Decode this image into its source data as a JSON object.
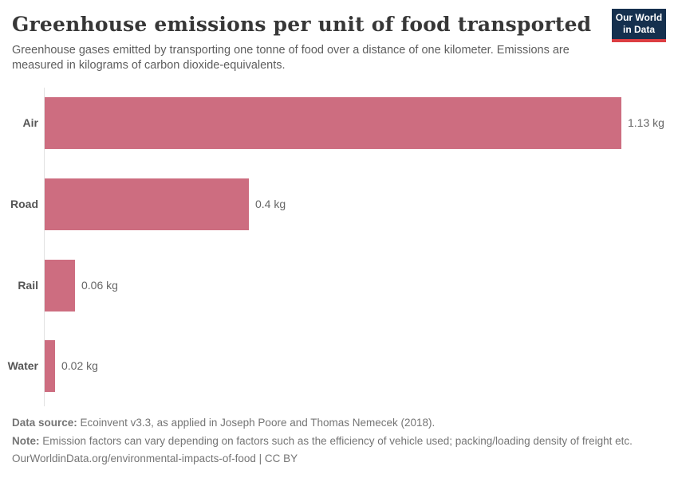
{
  "header": {
    "title": "Greenhouse emissions per unit of food transported",
    "subtitle": "Greenhouse gases emitted by transporting one tonne of food over a distance of one kilometer. Emissions are measured in kilograms of carbon dioxide-equivalents.",
    "logo": {
      "line1": "Our World",
      "line2": "in Data",
      "bg_color": "#15304e",
      "accent_color": "#dc3e42"
    }
  },
  "chart_data": {
    "type": "bar",
    "orientation": "horizontal",
    "title": "Greenhouse emissions per unit of food transported",
    "categories": [
      "Air",
      "Road",
      "Rail",
      "Water"
    ],
    "values": [
      1.13,
      0.4,
      0.06,
      0.02
    ],
    "value_labels": [
      "1.13 kg",
      "0.4 kg",
      "0.06 kg",
      "0.02 kg"
    ],
    "unit": "kg",
    "xlabel": "",
    "ylabel": "",
    "xlim": [
      0,
      1.23
    ],
    "grid": false,
    "legend": false,
    "bar_color": "#cd6d80",
    "axis_color": "#e2e2e2"
  },
  "footer": {
    "source_label": "Data source:",
    "source_text": " Ecoinvent v3.3, as applied in Joseph Poore and Thomas Nemecek (2018).",
    "note_label": "Note:",
    "note_text": " Emission factors can vary depending on factors such as the efficiency of vehicle used; packing/loading density of freight etc.",
    "url": "OurWorldinData.org/environmental-impacts-of-food",
    "license": " | CC BY"
  }
}
